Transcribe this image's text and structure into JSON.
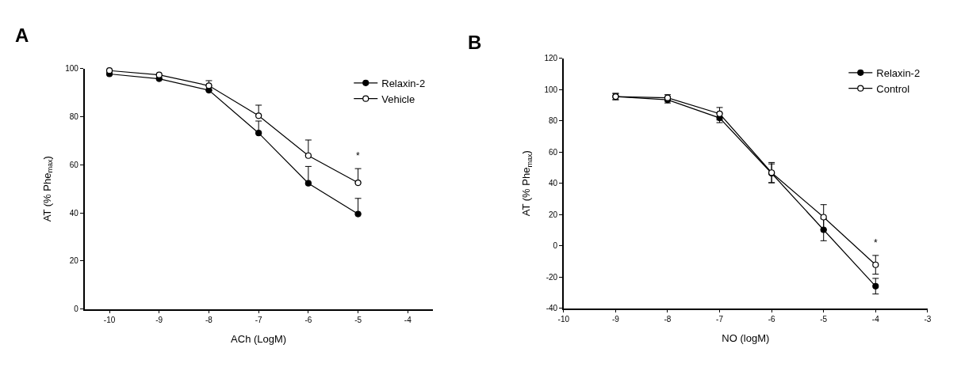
{
  "chart_data": [
    {
      "type": "line",
      "title": "A",
      "xlabel": "ACh (LogM)",
      "ylabel": "AT (% Phe$_{max}$)",
      "xlim": [
        -10.5,
        -3.5
      ],
      "xticks": [
        -10,
        -9,
        -8,
        -7,
        -6,
        -5,
        -4
      ],
      "ylim": [
        0,
        100
      ],
      "yticks": [
        0,
        20,
        40,
        60,
        80,
        100
      ],
      "x": [
        -10,
        -9,
        -8,
        -7,
        -6,
        -5
      ],
      "grid": false,
      "legend": "top right",
      "marker": "circle",
      "line_style": "solid",
      "series": [
        {
          "name": "Relaxin-2",
          "color": "#000000",
          "values": [
            97.8,
            95.8,
            91.0,
            73.2,
            52.3,
            39.5
          ],
          "errors": [
            null,
            null,
            null,
            [
              73.2,
              78.2
            ],
            [
              52.3,
              59.3
            ],
            [
              39.5,
              46
            ]
          ]
        },
        {
          "name": "Vehicle",
          "color": "#ffffff",
          "values": [
            99.2,
            97.4,
            92.9,
            80.4,
            63.8,
            52.5
          ],
          "errors": [
            null,
            null,
            [
              92.9,
              95
            ],
            [
              80.4,
              84.8
            ],
            [
              63.8,
              70.3
            ],
            [
              52.5,
              58.4
            ]
          ]
        }
      ],
      "annotations": [
        "*"
      ]
    },
    {
      "type": "line",
      "title": "B",
      "xlabel": "NO (logM)",
      "ylabel": "AT (% Phe$_{max}$)",
      "xlim": [
        -10,
        -3
      ],
      "xticks": [
        -10,
        -9,
        -8,
        -7,
        -6,
        -5,
        -4,
        -3
      ],
      "ylim": [
        -40,
        120
      ],
      "yticks": [
        -40,
        -20,
        0,
        20,
        40,
        60,
        80,
        100,
        120
      ],
      "x": [
        -9,
        -8,
        -7,
        -6,
        -5,
        -4
      ],
      "grid": false,
      "legend": "top right",
      "marker": "circle",
      "line_style": "solid",
      "series": [
        {
          "name": "Relaxin-2",
          "color": "#000000",
          "values": [
            95.5,
            93.4,
            81.8,
            46.4,
            10.2,
            -25.9
          ],
          "errors": [
            2,
            2,
            3,
            6,
            7,
            5
          ]
        },
        {
          "name": "Control",
          "color": "#ffffff",
          "values": [
            95.5,
            94.7,
            84.5,
            46.8,
            18.3,
            -12.2
          ],
          "errors": [
            2,
            2,
            4,
            6.5,
            8,
            6
          ]
        }
      ],
      "annotations": [
        "*"
      ]
    }
  ]
}
